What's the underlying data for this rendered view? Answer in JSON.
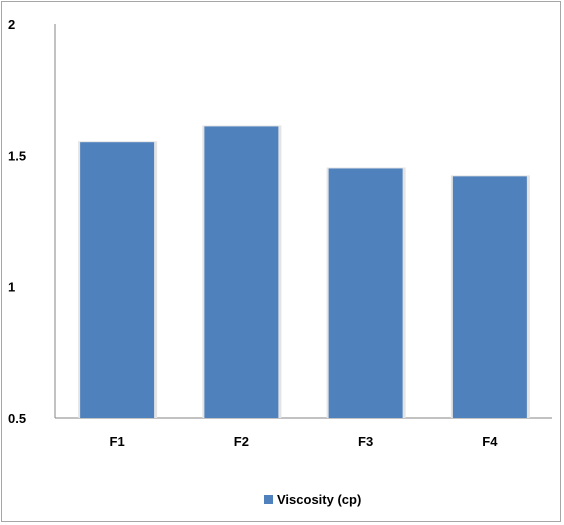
{
  "chart_data": {
    "type": "bar",
    "categories": [
      "F1",
      "F2",
      "F3",
      "F4"
    ],
    "series": [
      {
        "name": "Viscosity (cp)",
        "values": [
          1.55,
          1.61,
          1.45,
          1.42
        ]
      }
    ],
    "title": "",
    "xlabel": "",
    "ylabel": "",
    "ylim": [
      0.5,
      2
    ],
    "yticks": [
      "0.5",
      "1",
      "1.5",
      "2"
    ],
    "grid": false,
    "legend_position": "bottom",
    "bar_color": "#4f81bd"
  }
}
